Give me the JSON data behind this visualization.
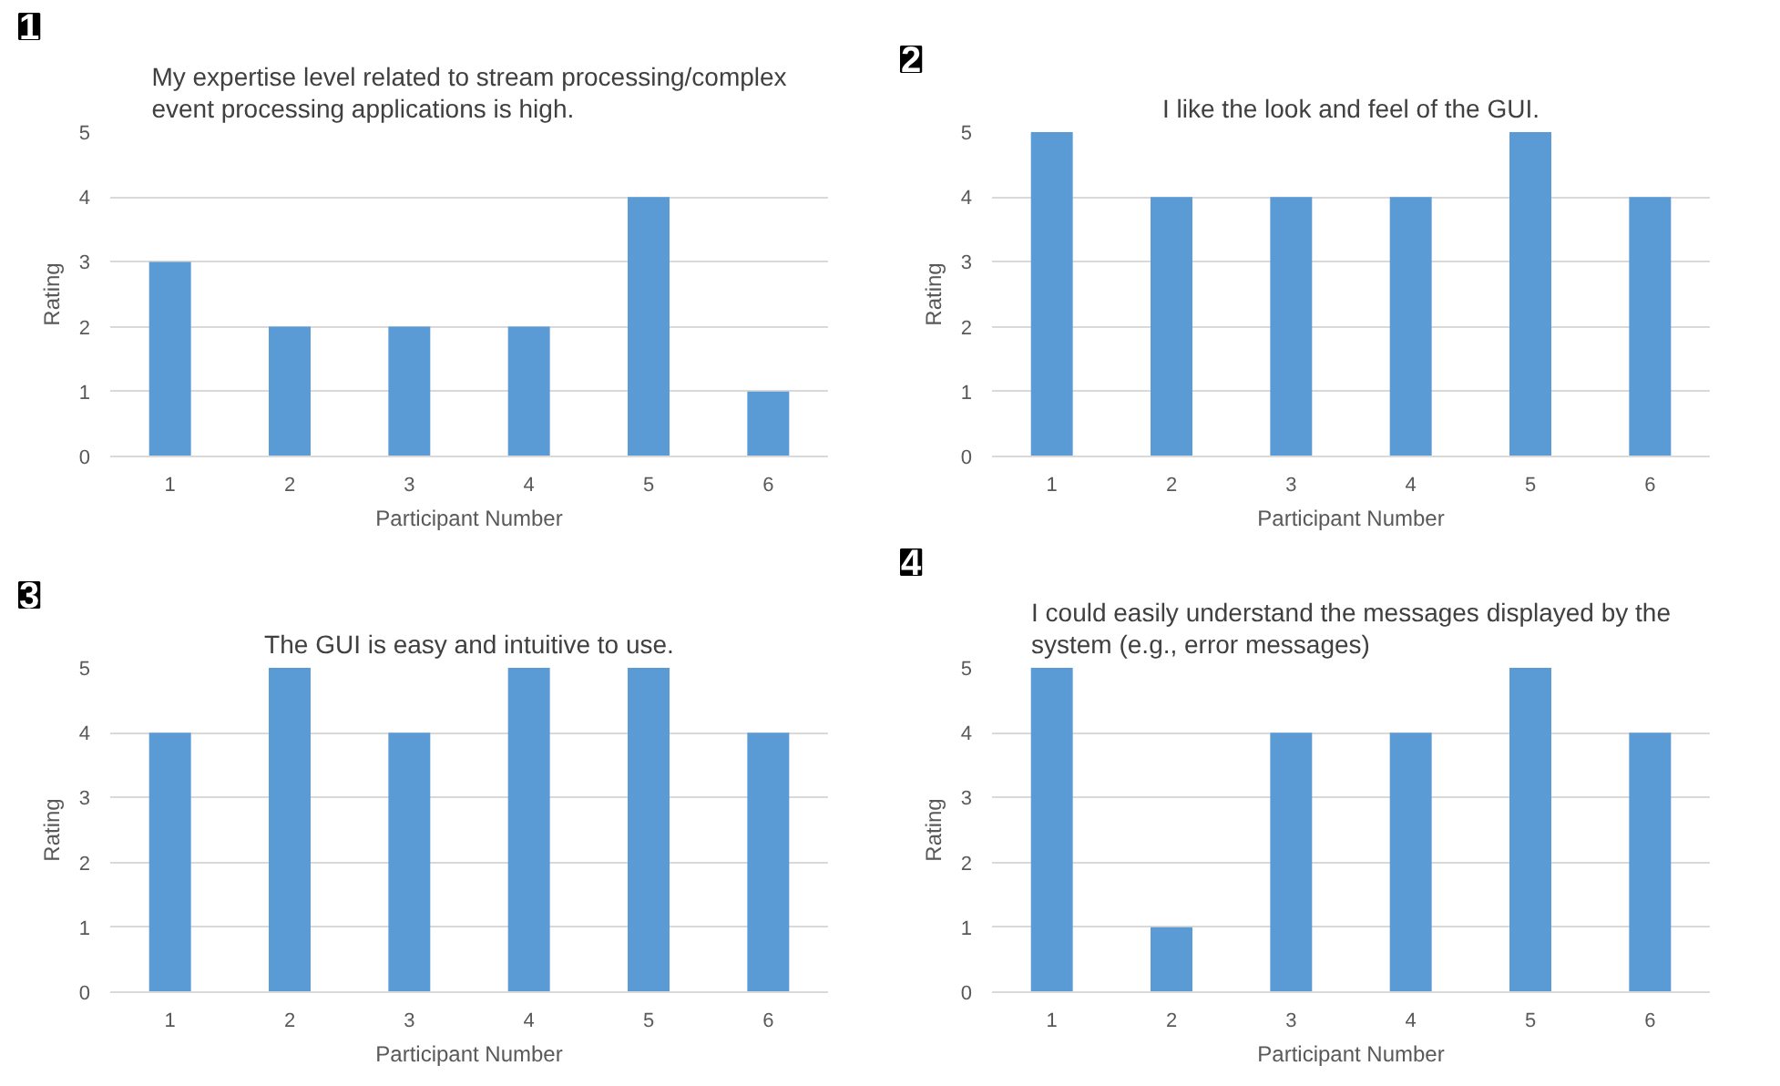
{
  "chart_data": [
    {
      "type": "bar",
      "title": "My expertise level related to stream processing/complex event processing applications is high.",
      "annotations": [
        "1"
      ],
      "categories": [
        "1",
        "2",
        "3",
        "4",
        "5",
        "6"
      ],
      "values": [
        3,
        2,
        2,
        2,
        4,
        1
      ],
      "color": "#5b9bd5",
      "xlabel": "Participant Number",
      "ylabel": "Rating",
      "ylim": [
        0,
        5
      ],
      "yticks": [
        0,
        1,
        2,
        3,
        4,
        5
      ],
      "grid": "y"
    },
    {
      "type": "bar",
      "title": "I like the look and feel of the GUI.",
      "annotations": [
        "2"
      ],
      "categories": [
        "1",
        "2",
        "3",
        "4",
        "5",
        "6"
      ],
      "values": [
        5,
        4,
        4,
        4,
        5,
        4
      ],
      "color": "#5b9bd5",
      "xlabel": "Participant Number",
      "ylabel": "Rating",
      "ylim": [
        0,
        5
      ],
      "yticks": [
        0,
        1,
        2,
        3,
        4,
        5
      ],
      "grid": "y"
    },
    {
      "type": "bar",
      "title": "The GUI is easy and intuitive to use.",
      "annotations": [
        "3"
      ],
      "categories": [
        "1",
        "2",
        "3",
        "4",
        "5",
        "6"
      ],
      "values": [
        4,
        5,
        4,
        5,
        5,
        4
      ],
      "color": "#5b9bd5",
      "xlabel": "Participant Number",
      "ylabel": "Rating",
      "ylim": [
        0,
        5
      ],
      "yticks": [
        0,
        1,
        2,
        3,
        4,
        5
      ],
      "grid": "y"
    },
    {
      "type": "bar",
      "title": "I could easily understand the messages displayed by the system (e.g., error messages)",
      "annotations": [
        "4"
      ],
      "categories": [
        "1",
        "2",
        "3",
        "4",
        "5",
        "6"
      ],
      "values": [
        5,
        1,
        4,
        4,
        5,
        4
      ],
      "color": "#5b9bd5",
      "xlabel": "Participant Number",
      "ylabel": "Rating",
      "ylim": [
        0,
        5
      ],
      "yticks": [
        0,
        1,
        2,
        3,
        4,
        5
      ],
      "grid": "y"
    }
  ]
}
